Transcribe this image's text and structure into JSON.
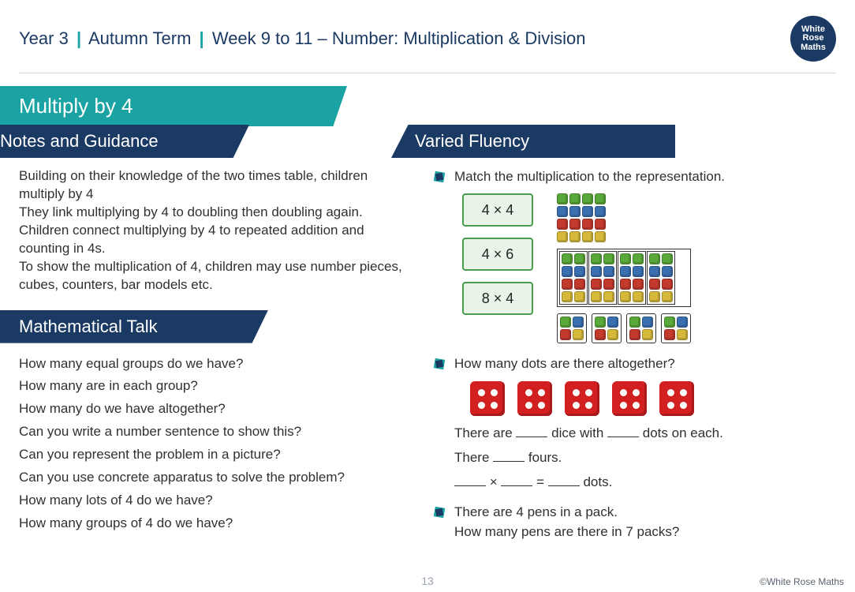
{
  "header": {
    "year": "Year 3",
    "term": "Autumn Term",
    "week": "Week 9 to 11 – Number: Multiplication & Division",
    "logo_lines": [
      "White",
      "Rose",
      "Maths"
    ],
    "logo_bg": "#1b3a63"
  },
  "title": "Multiply by 4",
  "title_bg": "#1ba3a3",
  "sections": {
    "notes_heading": "Notes and Guidance",
    "notes_text": "Building on their knowledge of the two times table, children multiply by 4\nThey link multiplying by 4 to doubling then doubling again.\nChildren connect multiplying by 4 to repeated addition and counting in 4s.\nTo show the multiplication of 4, children may use number pieces, cubes, counters, bar models etc.",
    "talk_heading": "Mathematical Talk",
    "talk_questions": [
      "How many equal groups do we have?",
      "How many are in each group?",
      "How many do we have altogether?",
      "Can you write a number sentence to show this?",
      "Can you represent the problem in a picture?",
      "Can you use concrete apparatus to solve the problem?",
      "How many lots of 4 do we have?",
      "How many groups of 4 do we have?"
    ],
    "fluency_heading": "Varied Fluency"
  },
  "fluency": {
    "item1": {
      "prompt": "Match the multiplication to the representation.",
      "expressions": [
        "4 × 4",
        "4 × 6",
        "8 × 4"
      ],
      "cube_colors": {
        "green": "#5aa83a",
        "blue": "#3a6fb0",
        "red": "#c23a2e",
        "yellow": "#d6b93a"
      },
      "rep1": {
        "rows": 4,
        "cols": 4,
        "row_colors": [
          "green",
          "blue",
          "red",
          "yellow"
        ]
      },
      "rep2": {
        "rows": 4,
        "cols": 8,
        "row_colors": [
          "green",
          "blue",
          "red",
          "yellow"
        ],
        "bordered_grid_cols": 4
      },
      "rep3": {
        "groups": 4,
        "rows": 2,
        "cols": 2,
        "row_colors": [
          "green",
          "yellow"
        ]
      }
    },
    "item2": {
      "prompt": "How many dots are there altogether?",
      "dice_count": 5,
      "dots_per_die": 4,
      "die_color": "#d22020",
      "dot_color": "#ffffff",
      "lines": [
        "There are ____ dice with ____ dots on each.",
        "There ____ fours.",
        "____ × ____ = ____ dots."
      ]
    },
    "item3": {
      "line1": "There are 4 pens in a pack.",
      "line2": "How many pens are there in 7 packs?"
    }
  },
  "page_number": "13",
  "copyright": "©White Rose Maths",
  "colors": {
    "navy": "#1b3a63",
    "teal": "#1ba3a3",
    "text": "#303030",
    "box_border": "#4a9d4a",
    "box_fill": "#e8f4e8"
  }
}
